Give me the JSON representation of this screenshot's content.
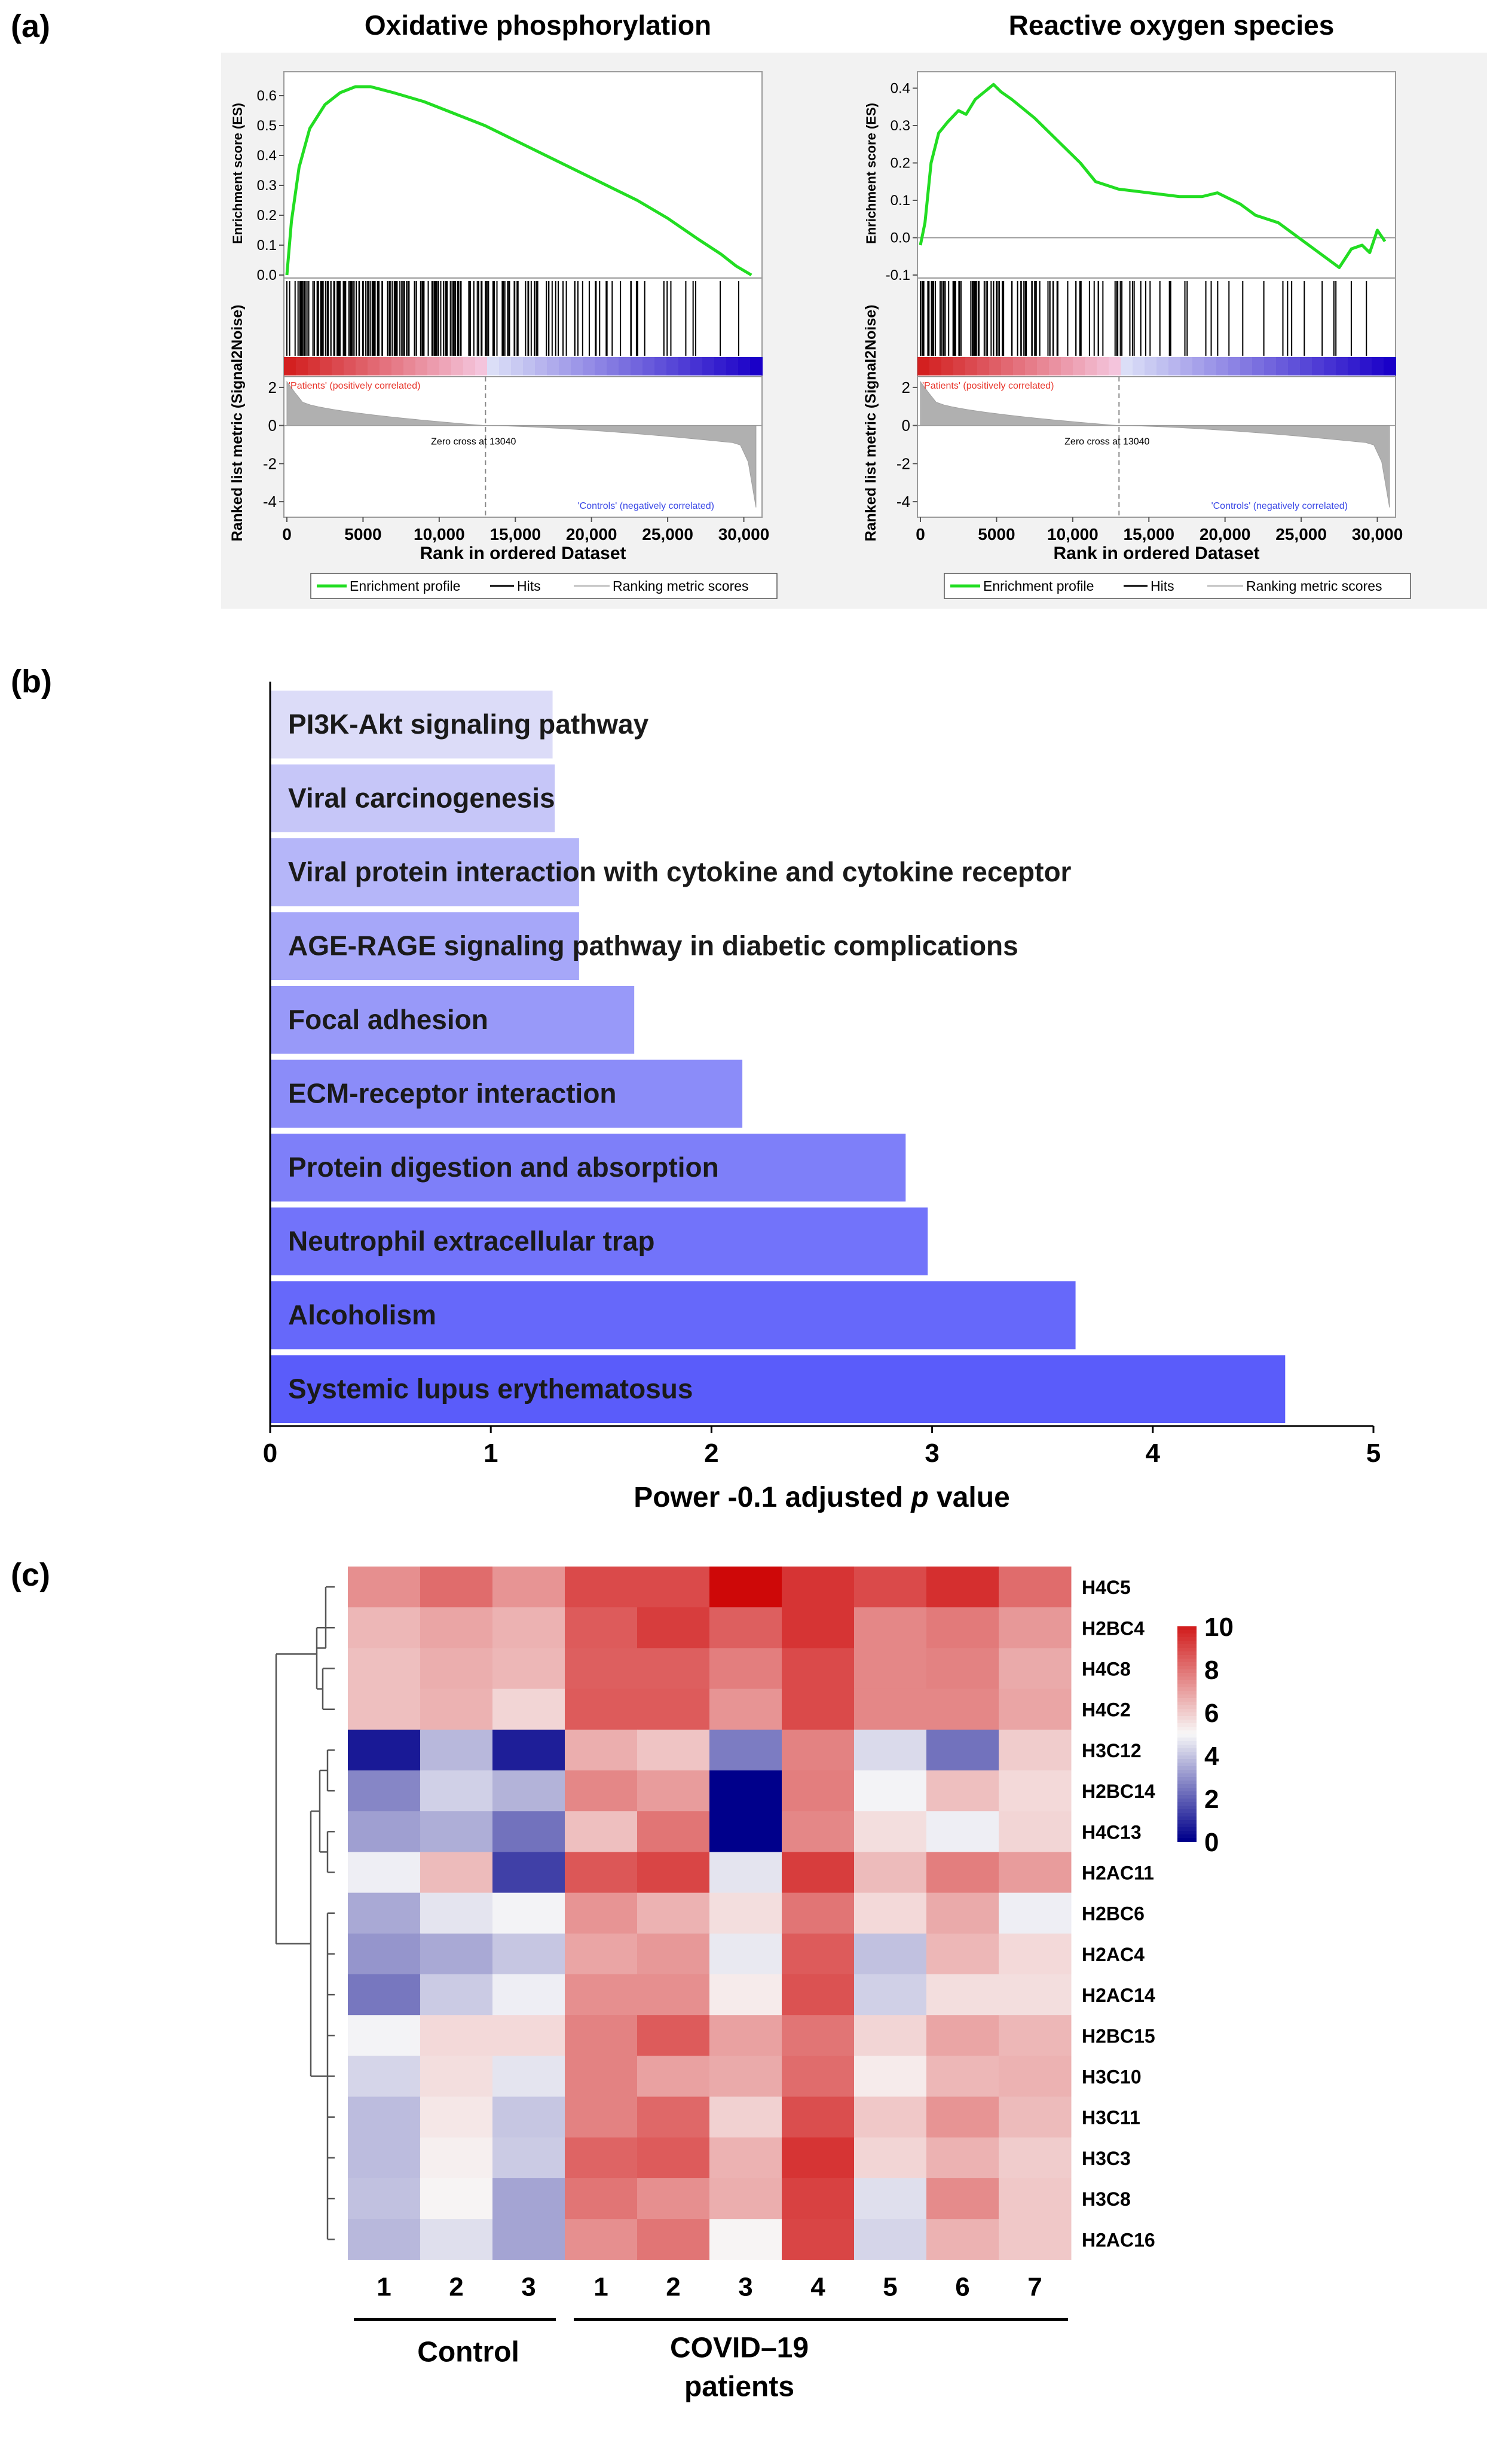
{
  "figure": {
    "panel_labels": [
      "(a)",
      "(b)",
      "(c)"
    ]
  },
  "chart_data": [
    {
      "panel": "(a)",
      "type": "line",
      "title": "Oxidative phosphorylation",
      "ylabel": "Enrichment score (ES)",
      "ylim": [
        0,
        0.65
      ],
      "yticks": [
        "0.0",
        "0.1",
        "0.2",
        "0.3",
        "0.4",
        "0.5",
        "0.6"
      ],
      "x": [
        0,
        300,
        800,
        1500,
        2500,
        3500,
        4500,
        5500,
        7000,
        9000,
        11000,
        13000,
        15000,
        17000,
        19000,
        21000,
        23000,
        25000,
        27000,
        28500,
        29500,
        30500
      ],
      "es": [
        0.0,
        0.18,
        0.36,
        0.49,
        0.57,
        0.61,
        0.63,
        0.63,
        0.61,
        0.58,
        0.54,
        0.5,
        0.45,
        0.4,
        0.35,
        0.3,
        0.25,
        0.19,
        0.12,
        0.07,
        0.03,
        0.0
      ],
      "hits_density": [
        1,
        1,
        1,
        1,
        1,
        1,
        0.95,
        0.9,
        0.85,
        0.8,
        0.7,
        0.65,
        0.55,
        0.5,
        0.42,
        0.35,
        0.3,
        0.25,
        0.2,
        0.18,
        0.15,
        0.12,
        0.12,
        0.1,
        0.08
      ],
      "metric_ylabel": "Ranked list metric (Signal2Noise)",
      "metric_ylim": [
        -4.5,
        2.5
      ],
      "metric_yticks": [
        "2",
        "0",
        "-2",
        "-4"
      ],
      "xlabel": "Rank in ordered Dataset",
      "xlim": [
        0,
        31000
      ],
      "xticks": [
        "0",
        "5000",
        "10,000",
        "15,000",
        "20,000",
        "25,000",
        "30,000"
      ],
      "pos_label": "'Patients' (positively correlated)",
      "neg_label": "'Controls' (negatively correlated)",
      "zero_cross": "Zero cross at 13040",
      "legend": [
        "Enrichment profile",
        "Hits",
        "Ranking metric scores"
      ],
      "colors": {
        "es_line": "#22dd22",
        "hits": "#000000",
        "metric": "#b0b0b0"
      }
    },
    {
      "panel": "(a)",
      "type": "line",
      "title": "Reactive oxygen species",
      "ylabel": "Enrichment score (ES)",
      "ylim": [
        -0.1,
        0.42
      ],
      "yticks": [
        "-0.1",
        "0.0",
        "0.1",
        "0.2",
        "0.3",
        "0.4"
      ],
      "x": [
        0,
        300,
        700,
        1200,
        1800,
        2500,
        3000,
        3600,
        4200,
        4800,
        5300,
        6000,
        7500,
        9000,
        10500,
        11500,
        13000,
        15000,
        17000,
        18500,
        19500,
        21000,
        22000,
        23500,
        24500,
        25500,
        26500,
        27500,
        28300,
        29000,
        29500,
        30000,
        30500
      ],
      "es": [
        -0.02,
        0.04,
        0.2,
        0.28,
        0.31,
        0.34,
        0.33,
        0.37,
        0.39,
        0.41,
        0.39,
        0.37,
        0.32,
        0.26,
        0.2,
        0.15,
        0.13,
        0.12,
        0.11,
        0.11,
        0.12,
        0.09,
        0.06,
        0.04,
        0.01,
        -0.02,
        -0.05,
        -0.08,
        -0.03,
        -0.02,
        -0.04,
        0.02,
        -0.01
      ],
      "hits_density": [
        0.9,
        0.85,
        0.8,
        0.7,
        0.65,
        0.6,
        0.5,
        0.45,
        0.4,
        0.35,
        0.3,
        0.28,
        0.24,
        0.2,
        0.16,
        0.14,
        0.12,
        0.1,
        0.1,
        0.08,
        0.12,
        0.15,
        0.15,
        0.1,
        0.06
      ],
      "metric_ylabel": "Ranked list metric (Signal2Noise)",
      "metric_ylim": [
        -4.5,
        2.5
      ],
      "metric_yticks": [
        "2",
        "0",
        "-2",
        "-4"
      ],
      "xlabel": "Rank in ordered Dataset",
      "xlim": [
        0,
        31000
      ],
      "xticks": [
        "0",
        "5000",
        "10,000",
        "15,000",
        "20,000",
        "25,000",
        "30,000"
      ],
      "pos_label": "'Patients' (positively correlated)",
      "neg_label": "'Controls' (negatively correlated)",
      "zero_cross": "Zero cross at 13040",
      "legend": [
        "Enrichment profile",
        "Hits",
        "Ranking metric scores"
      ],
      "colors": {
        "es_line": "#22dd22",
        "hits": "#000000",
        "metric": "#b0b0b0"
      }
    },
    {
      "panel": "(b)",
      "type": "bar",
      "orientation": "horizontal",
      "categories": [
        "PI3K-Akt signaling pathway",
        "Viral carcinogenesis",
        "Viral protein interaction with cytokine and cytokine receptor",
        "AGE-RAGE signaling pathway in diabetic complications",
        "Focal adhesion",
        "ECM-receptor interaction",
        "Protein digestion and absorption",
        "Neutrophil extracellular trap",
        "Alcoholism",
        "Systemic lupus erythematosus"
      ],
      "values": [
        1.28,
        1.29,
        1.4,
        1.4,
        1.65,
        2.14,
        2.88,
        2.98,
        3.65,
        4.6
      ],
      "xlim": [
        0,
        5
      ],
      "xticks": [
        "0",
        "1",
        "2",
        "3",
        "4",
        "5"
      ],
      "xlabel_prefix": "Power -0.1 adjusted ",
      "xlabel_italic": "p",
      "xlabel_suffix": " value",
      "colors": {
        "low": "#dcdcf8",
        "high": "#5a5cfa"
      }
    },
    {
      "panel": "(c)",
      "type": "heatmap",
      "rows": [
        "H4C5",
        "H2BC4",
        "H4C8",
        "H4C2",
        "H3C12",
        "H2BC14",
        "H4C13",
        "H2AC11",
        "H2BC6",
        "H2AC4",
        "H2AC14",
        "H2BC15",
        "H3C10",
        "H3C11",
        "H3C3",
        "H3C8",
        "H2AC16"
      ],
      "columns": [
        "1",
        "2",
        "3",
        "1",
        "2",
        "3",
        "4",
        "5",
        "6",
        "7"
      ],
      "values": [
        [
          7.4,
          8.2,
          7.3,
          9.0,
          9.0,
          10.5,
          9.5,
          9.0,
          9.6,
          8.2
        ],
        [
          6.5,
          6.9,
          6.6,
          8.6,
          9.3,
          8.5,
          9.5,
          7.6,
          7.9,
          7.2
        ],
        [
          6.3,
          6.7,
          6.5,
          8.5,
          8.5,
          7.8,
          9.0,
          7.6,
          7.7,
          6.8
        ],
        [
          6.3,
          6.6,
          5.8,
          8.6,
          8.6,
          7.3,
          9.0,
          7.6,
          7.6,
          6.9
        ],
        [
          0.5,
          3.7,
          0.6,
          6.7,
          6.2,
          2.5,
          7.7,
          4.4,
          2.3,
          6.0
        ],
        [
          2.7,
          4.2,
          3.6,
          7.6,
          7.1,
          0.0,
          7.8,
          4.9,
          6.3,
          5.7
        ],
        [
          3.2,
          3.5,
          2.3,
          6.3,
          8.0,
          0.0,
          7.6,
          5.6,
          4.8,
          5.8
        ],
        [
          4.8,
          6.4,
          1.3,
          8.7,
          9.1,
          4.6,
          9.3,
          6.4,
          7.8,
          7.1
        ],
        [
          3.4,
          4.6,
          4.9,
          7.3,
          6.6,
          5.6,
          8.0,
          5.7,
          6.8,
          4.8
        ],
        [
          3.0,
          3.4,
          4.0,
          6.9,
          7.2,
          4.7,
          8.6,
          3.9,
          6.5,
          5.7
        ],
        [
          2.4,
          4.1,
          4.8,
          7.4,
          7.4,
          5.3,
          8.8,
          4.2,
          5.6,
          5.6
        ],
        [
          4.9,
          5.7,
          5.7,
          7.7,
          8.6,
          7.0,
          8.0,
          5.8,
          6.9,
          6.5
        ],
        [
          4.3,
          5.6,
          4.6,
          7.7,
          7.0,
          6.8,
          8.2,
          5.3,
          6.5,
          6.6
        ],
        [
          3.8,
          5.4,
          4.0,
          7.7,
          8.3,
          5.9,
          8.9,
          6.1,
          7.3,
          6.4
        ],
        [
          3.8,
          5.2,
          4.1,
          8.4,
          8.6,
          6.6,
          9.5,
          5.8,
          6.6,
          6.0
        ],
        [
          3.9,
          5.1,
          3.3,
          8.0,
          7.4,
          6.7,
          9.2,
          4.5,
          7.5,
          6.1
        ],
        [
          3.7,
          4.5,
          3.3,
          7.4,
          8.0,
          5.1,
          9.1,
          4.3,
          6.6,
          6.1
        ]
      ],
      "scale_range": [
        0,
        10
      ],
      "scale_ticks": [
        "10",
        "8",
        "6",
        "4",
        "2",
        "0"
      ],
      "group_labels": [
        "Control",
        "COVID–19",
        "patients"
      ],
      "colors": {
        "low": "#00008b",
        "mid": "#f8f8f8",
        "high": "#d21e1e"
      }
    }
  ]
}
